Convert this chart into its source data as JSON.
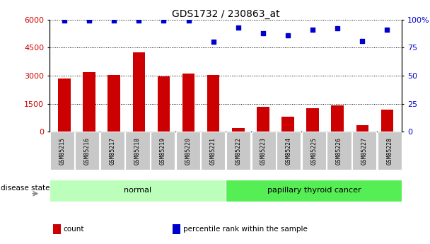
{
  "title": "GDS1732 / 230863_at",
  "samples": [
    "GSM85215",
    "GSM85216",
    "GSM85217",
    "GSM85218",
    "GSM85219",
    "GSM85220",
    "GSM85221",
    "GSM85222",
    "GSM85223",
    "GSM85224",
    "GSM85225",
    "GSM85226",
    "GSM85227",
    "GSM85228"
  ],
  "counts": [
    2850,
    3200,
    3050,
    4250,
    2950,
    3100,
    3050,
    200,
    1350,
    800,
    1250,
    1400,
    350,
    1200
  ],
  "percentiles": [
    99,
    99,
    99,
    99,
    99,
    99,
    80,
    93,
    88,
    86,
    91,
    92,
    81,
    91
  ],
  "bar_color": "#cc0000",
  "dot_color": "#0000cc",
  "ylim_left": [
    0,
    6000
  ],
  "ylim_right": [
    0,
    100
  ],
  "yticks_left": [
    0,
    1500,
    3000,
    4500,
    6000
  ],
  "yticks_right": [
    0,
    25,
    50,
    75,
    100
  ],
  "groups": [
    {
      "label": "normal",
      "start": 0,
      "end": 7,
      "color": "#bbffbb"
    },
    {
      "label": "papillary thyroid cancer",
      "start": 7,
      "end": 14,
      "color": "#55ee55"
    }
  ],
  "disease_state_label": "disease state",
  "legend_items": [
    {
      "label": "count",
      "color": "#cc0000"
    },
    {
      "label": "percentile rank within the sample",
      "color": "#0000cc"
    }
  ],
  "tick_label_color_left": "#cc0000",
  "tick_label_color_right": "#0000cc",
  "grid_linestyle": "dotted",
  "plot_bg": "white",
  "tickbox_color": "#c8c8c8"
}
